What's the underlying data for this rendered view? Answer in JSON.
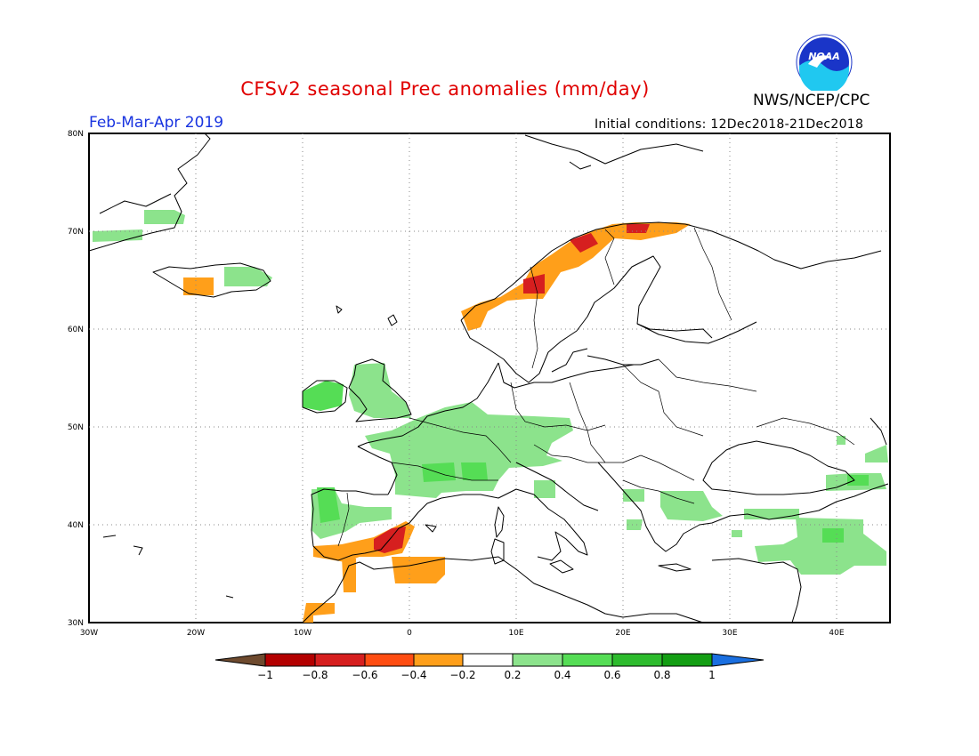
{
  "title": "CFSv2 seasonal Prec anomalies (mm/day)",
  "agency": "NWS/NCEP/CPC",
  "logo_text": "NOAA",
  "season": "Feb-Mar-Apr 2019",
  "initial_conditions": "Initial conditions: 12Dec2018-21Dec2018",
  "lat_labels": [
    "80N",
    "70N",
    "60N",
    "50N",
    "40N",
    "30N"
  ],
  "lon_labels": [
    "30W",
    "20W",
    "10W",
    "0",
    "10E",
    "20E",
    "30E",
    "40E"
  ],
  "colorbar": {
    "labels": [
      "-1",
      "-0.8",
      "-0.6",
      "-0.4",
      "-0.2",
      "0.2",
      "0.4",
      "0.6",
      "0.8",
      "1"
    ],
    "colors": [
      "#6e4a2e",
      "#b30000",
      "#d61f1f",
      "#ff4d12",
      "#ff9f1a",
      "#ffffff",
      "#8ce38c",
      "#55dd55",
      "#2dbb2d",
      "#139e13",
      "#1a6fe0"
    ]
  },
  "map_extent": {
    "lon_min": -30,
    "lon_max": 45,
    "lat_min": 30,
    "lat_max": 80
  },
  "anomaly_regions": [
    {
      "name": "spain-dry",
      "value": -0.4
    },
    {
      "name": "spain-east-dry",
      "value": -0.6
    },
    {
      "name": "morocco-dry",
      "value": -0.4
    },
    {
      "name": "algeria-dry",
      "value": -0.4
    },
    {
      "name": "norway-dry",
      "value": -0.4
    },
    {
      "name": "norway-north-dry",
      "value": -0.6
    },
    {
      "name": "iceland-dry",
      "value": -0.4
    },
    {
      "name": "france-wet",
      "value": 0.4
    },
    {
      "name": "ireland-wet",
      "value": 0.4
    },
    {
      "name": "portugal-wet",
      "value": 0.4
    },
    {
      "name": "turkey-wet",
      "value": 0.2
    },
    {
      "name": "greenland-wet",
      "value": 0.2
    }
  ]
}
